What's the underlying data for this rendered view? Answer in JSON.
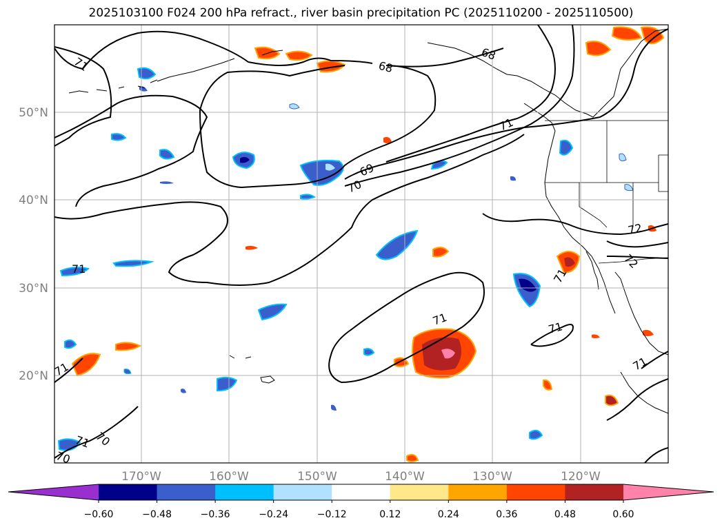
{
  "title": "2025103100 F024 200 hPa refract., river basin precipitation PC (2025110200 - 2025110500)",
  "lat_labels": [
    "50°N",
    "40°N",
    "30°N",
    "20°N"
  ],
  "lon_labels": [
    "170°W",
    "160°W",
    "150°W",
    "140°W",
    "130°W",
    "120°W"
  ],
  "contour_labels": [
    "71",
    "68",
    "68",
    "71",
    "69",
    "70",
    "72",
    "72",
    "71",
    "71",
    "71",
    "71",
    "71",
    "71",
    "70",
    "71",
    "70"
  ],
  "colorbar": {
    "ticks": [
      "−0.60",
      "−0.48",
      "−0.36",
      "−0.24",
      "−0.12",
      "0.12",
      "0.24",
      "0.36",
      "0.48",
      "0.60"
    ],
    "colors": [
      "#9a2fd0",
      "#00008b",
      "#3a5fcd",
      "#00bfff",
      "#b0e2ff",
      "#ffffff",
      "#ffe88a",
      "#ffa500",
      "#ff4500",
      "#b22222",
      "#ff82ab",
      "#ff82ab"
    ]
  }
}
